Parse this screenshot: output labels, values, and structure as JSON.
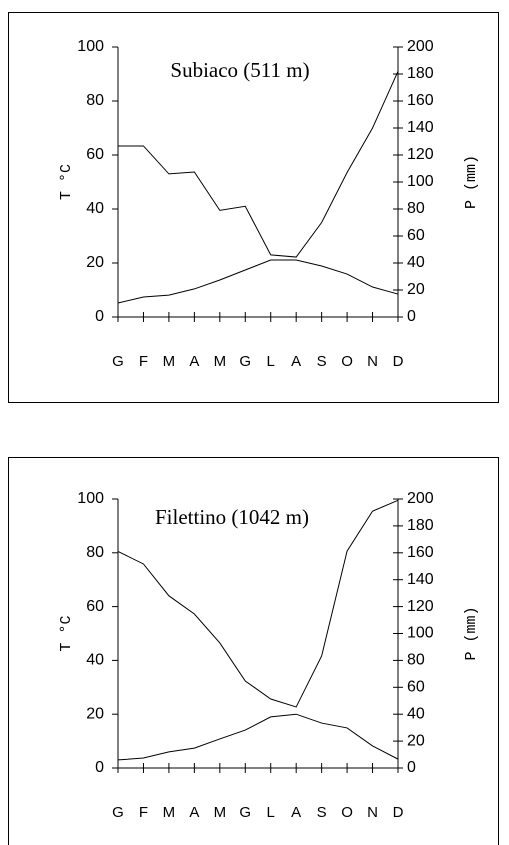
{
  "chart_data": [
    {
      "type": "line",
      "title": "Subiaco (511 m)",
      "ylabel": "T °C",
      "y2label": "P (mm)",
      "categories": [
        "G",
        "F",
        "M",
        "A",
        "M",
        "G",
        "L",
        "A",
        "S",
        "O",
        "N",
        "D"
      ],
      "ylim": [
        0,
        100
      ],
      "yticks": [
        0,
        20,
        40,
        60,
        80,
        100
      ],
      "y2lim": [
        0,
        200
      ],
      "y2ticks": [
        0,
        20,
        40,
        60,
        80,
        100,
        120,
        140,
        160,
        180,
        200
      ],
      "series": [
        {
          "color": "#000000",
          "values": [
            5.2,
            7.4,
            8.1,
            10.4,
            13.7,
            17.4,
            21.1,
            21.1,
            18.9,
            15.9,
            11.1,
            8.5
          ]
        },
        {
          "color": "#000000",
          "axis": "y2",
          "values": [
            126.7,
            126.7,
            106,
            107.4,
            79,
            82,
            46,
            44.4,
            70,
            107,
            140,
            182
          ]
        }
      ]
    },
    {
      "type": "line",
      "title": "Filettino (1042 m)",
      "ylabel": "T °C",
      "y2label": "P (mm)",
      "categories": [
        "G",
        "F",
        "M",
        "A",
        "M",
        "G",
        "L",
        "A",
        "S",
        "O",
        "N",
        "D"
      ],
      "ylim": [
        0,
        100
      ],
      "yticks": [
        0,
        20,
        40,
        60,
        80,
        100
      ],
      "y2lim": [
        0,
        200
      ],
      "y2ticks": [
        0,
        20,
        40,
        60,
        80,
        100,
        120,
        140,
        160,
        180,
        200
      ],
      "series": [
        {
          "color": "#000000",
          "values": [
            3,
            3.7,
            6,
            7.4,
            10.8,
            14.1,
            19,
            20,
            16.7,
            14.9,
            8.2,
            3.3
          ]
        },
        {
          "color": "#000000",
          "axis": "y2",
          "values": [
            161,
            151.7,
            128,
            114.5,
            93,
            64.7,
            51.3,
            45.4,
            83.3,
            161.3,
            191,
            199
          ]
        }
      ]
    }
  ]
}
